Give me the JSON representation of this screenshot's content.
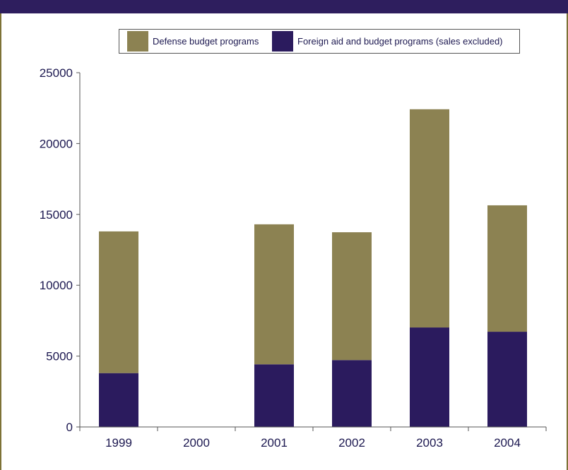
{
  "chart_data": {
    "type": "bar",
    "stacked": true,
    "categories": [
      "1999",
      "2000",
      "2001",
      "2002",
      "2003",
      "2004"
    ],
    "series": [
      {
        "name": "Foreign aid and budget programs (sales excluded)",
        "values": [
          3800,
          0,
          4420,
          4720,
          7020,
          6720
        ],
        "color": "#2b1b5e"
      },
      {
        "name": "Defense budget programs",
        "values": [
          10000,
          0,
          9880,
          9020,
          15400,
          8920
        ],
        "color": "#8c8252"
      }
    ],
    "legend_order": [
      "Defense budget programs",
      "Foreign aid and budget programs (sales excluded)"
    ],
    "legend_position": "top-right",
    "ylim": [
      0,
      25000
    ],
    "yticks": [
      "0",
      "5000",
      "10000",
      "15000",
      "20000",
      "25000"
    ],
    "grid": false
  },
  "colors": {
    "header_bar": "#2e1e5e",
    "frame": "#7d7236",
    "text": "#1c1850",
    "axis": "#555555"
  }
}
